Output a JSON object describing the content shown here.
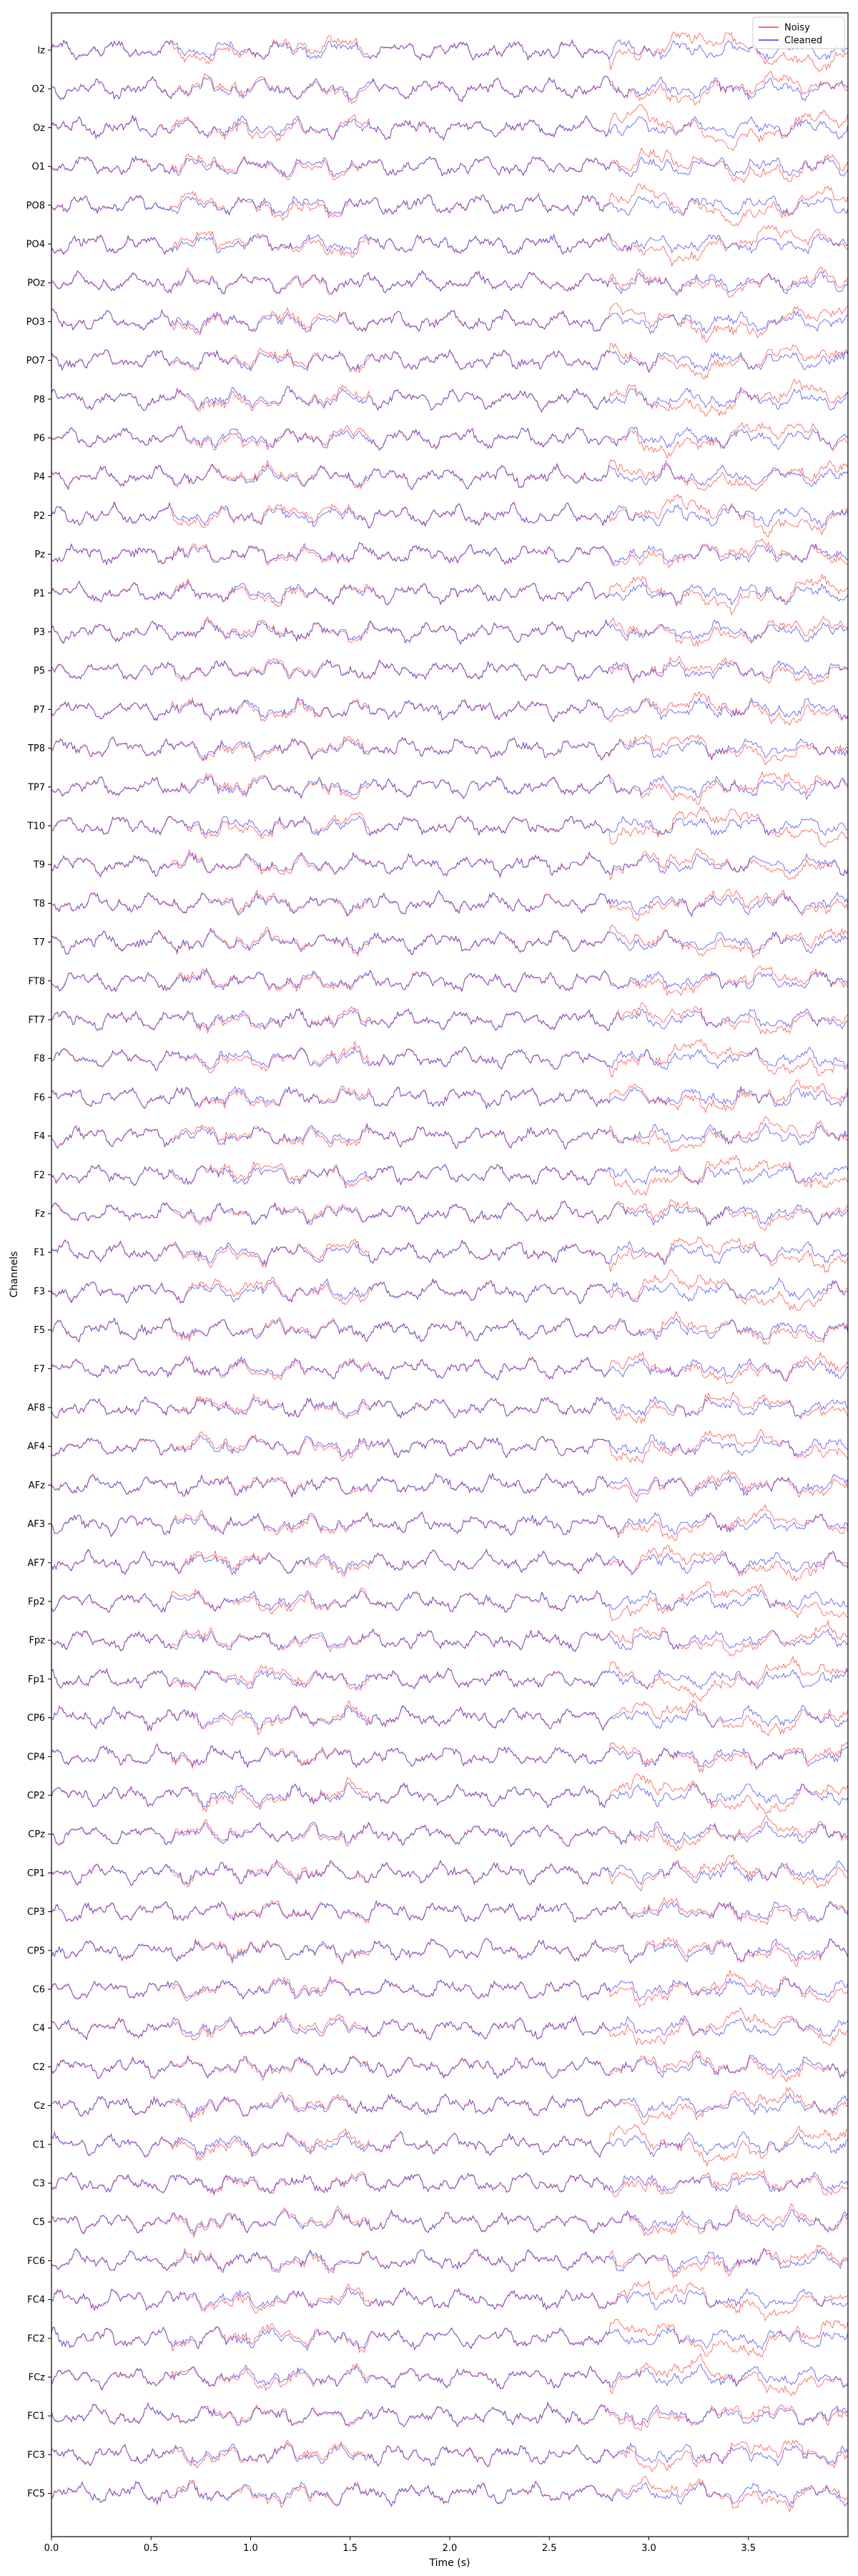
{
  "chart_data": {
    "type": "line",
    "title": "",
    "xlabel": "Time (s)",
    "ylabel": "Channels",
    "xlim": [
      0,
      4
    ],
    "x_ticks": [
      "0.0",
      "0.5",
      "1.0",
      "1.5",
      "2.0",
      "2.5",
      "3.0",
      "3.5"
    ],
    "grid": false,
    "legend": {
      "placement": "top-right",
      "entries": [
        {
          "name": "Noisy",
          "color": "#ff3b30"
        },
        {
          "name": "Cleaned",
          "color": "#3333ff"
        }
      ]
    },
    "channels": [
      "Iz",
      "O2",
      "Oz",
      "O1",
      "PO8",
      "PO4",
      "POz",
      "PO3",
      "PO7",
      "P8",
      "P6",
      "P4",
      "P2",
      "Pz",
      "P1",
      "P3",
      "P5",
      "P7",
      "TP8",
      "TP7",
      "T10",
      "T9",
      "T8",
      "T7",
      "FT8",
      "FT7",
      "F8",
      "F6",
      "F4",
      "F2",
      "Fz",
      "F1",
      "F3",
      "F5",
      "F7",
      "AF8",
      "AF4",
      "AFz",
      "AF3",
      "AF7",
      "Fp2",
      "Fpz",
      "Fp1",
      "CP6",
      "CP4",
      "CP2",
      "CPz",
      "CP1",
      "CP3",
      "CP5",
      "C6",
      "C4",
      "C2",
      "Cz",
      "C1",
      "C3",
      "C5",
      "FC6",
      "FC4",
      "FC2",
      "FCz",
      "FC1",
      "FC3",
      "FC5"
    ],
    "series": [
      {
        "name": "Noisy",
        "color": "#ff3b30"
      },
      {
        "name": "Cleaned",
        "color": "#3333ff"
      }
    ]
  }
}
